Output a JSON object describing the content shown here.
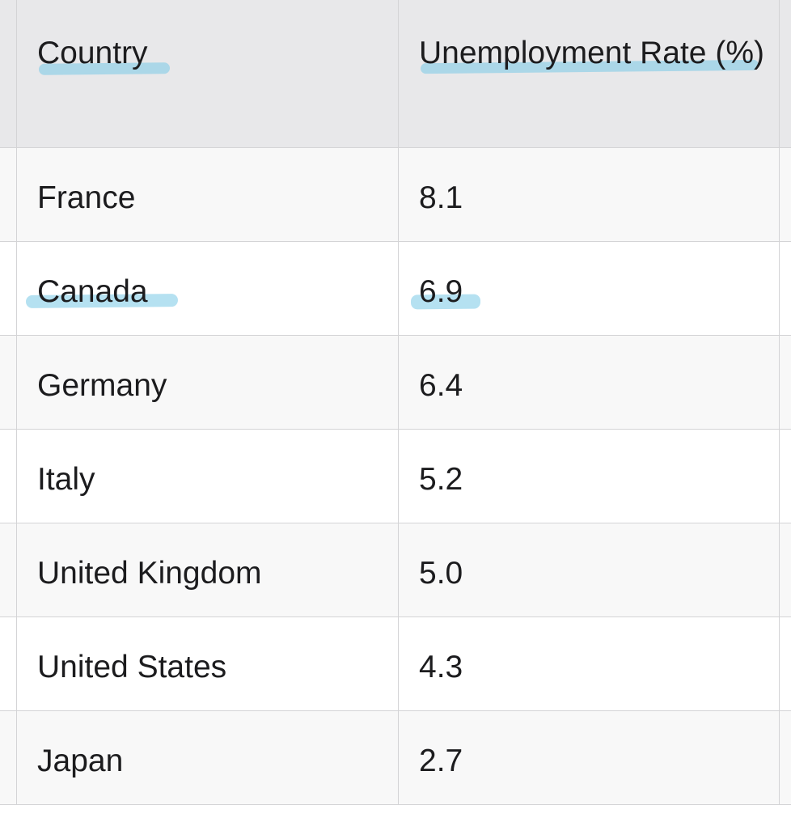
{
  "table": {
    "header": [
      "Country",
      "Unemployment Rate (%)"
    ],
    "rows": [
      [
        "France",
        "8.1"
      ],
      [
        "Canada",
        "6.9"
      ],
      [
        "Germany",
        "6.4"
      ],
      [
        "Italy",
        "5.2"
      ],
      [
        "United Kingdom",
        "5.0"
      ],
      [
        "United States",
        "4.3"
      ],
      [
        "Japan",
        "2.7"
      ]
    ]
  }
}
